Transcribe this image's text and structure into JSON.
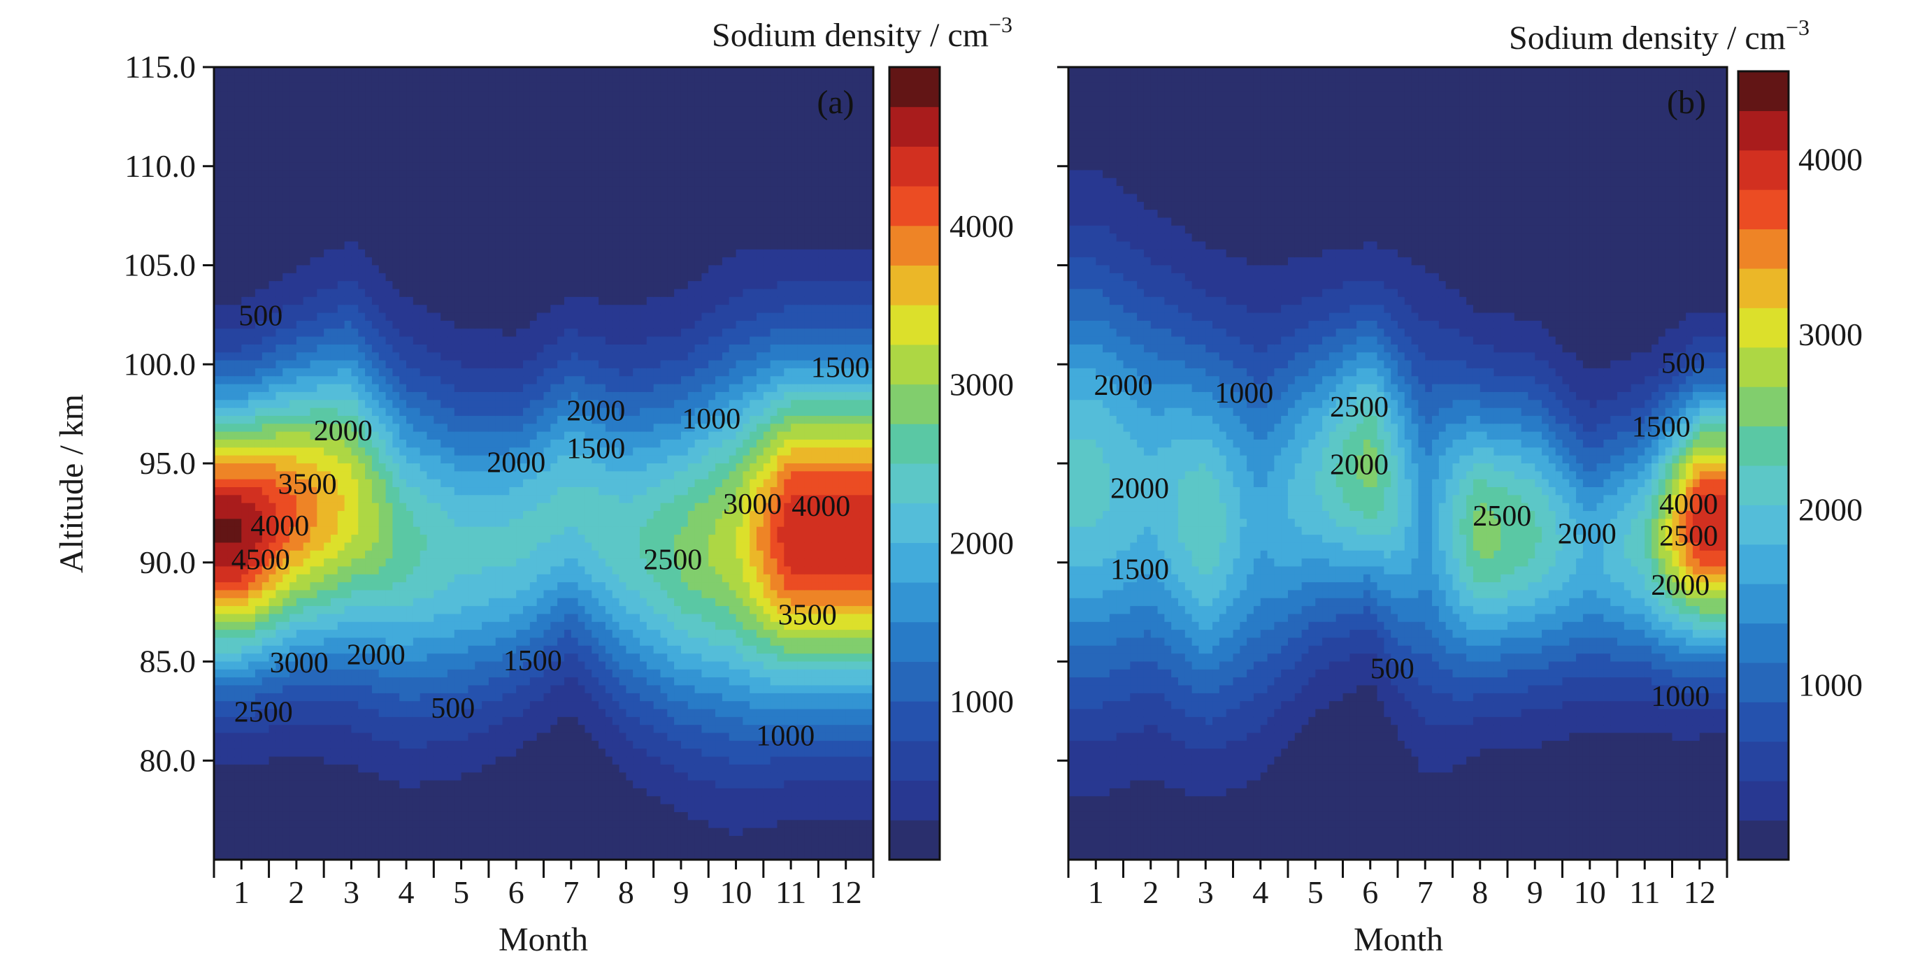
{
  "chart_data": [
    {
      "type": "heatmap",
      "panel_label": "(a)",
      "title": "Sodium density / cm",
      "title_exponent": "−3",
      "xlabel": "Month",
      "ylabel": "Altitude / km",
      "x": [
        1,
        2,
        3,
        4,
        5,
        6,
        7,
        8,
        9,
        10,
        11,
        12
      ],
      "xtick_labels": [
        "1",
        "2",
        "3",
        "4",
        "5",
        "6",
        "7",
        "8",
        "9",
        "10",
        "11",
        "12"
      ],
      "xlim": [
        0.5,
        12.5
      ],
      "ylim": [
        75,
        115
      ],
      "ytick_values": [
        80,
        85,
        90,
        95,
        100,
        105,
        110,
        115
      ],
      "ytick_labels": [
        "80.0",
        "85.0",
        "90.0",
        "95.0",
        "100.0",
        "105.0",
        "110.0",
        "115.0"
      ],
      "colorbar": {
        "range": [
          0,
          5000
        ],
        "tick_values": [
          1000,
          2000,
          3000,
          4000
        ],
        "tick_labels": [
          "1000",
          "2000",
          "3000",
          "4000"
        ]
      },
      "grid": false,
      "peak_altitude_km": [
        91.5,
        92.5,
        93,
        91,
        90.5,
        91,
        93,
        91,
        90.5,
        91,
        91.5,
        91.5
      ],
      "peak_density": [
        4800,
        4000,
        3400,
        2600,
        2300,
        2300,
        2300,
        2400,
        2800,
        3200,
        4500,
        4500
      ],
      "layer_width_km": [
        4.8,
        5.2,
        5.8,
        5.7,
        5.4,
        5.0,
        5.0,
        5.6,
        6.0,
        6.5,
        6.0,
        6.0
      ],
      "contour_labels": [
        {
          "text": "500",
          "x": 1.35,
          "y": 102.3
        },
        {
          "text": "2000",
          "x": 2.85,
          "y": 96.5
        },
        {
          "text": "3500",
          "x": 2.2,
          "y": 93.8
        },
        {
          "text": "4000",
          "x": 1.7,
          "y": 91.7
        },
        {
          "text": "4500",
          "x": 1.35,
          "y": 90.0
        },
        {
          "text": "3000",
          "x": 2.05,
          "y": 84.8
        },
        {
          "text": "2500",
          "x": 1.4,
          "y": 82.3
        },
        {
          "text": "2000",
          "x": 3.45,
          "y": 85.2
        },
        {
          "text": "500",
          "x": 4.85,
          "y": 82.5
        },
        {
          "text": "1500",
          "x": 6.3,
          "y": 84.9
        },
        {
          "text": "2000",
          "x": 6.0,
          "y": 94.9
        },
        {
          "text": "2000",
          "x": 7.45,
          "y": 97.5
        },
        {
          "text": "1500",
          "x": 7.45,
          "y": 95.6
        },
        {
          "text": "1000",
          "x": 9.55,
          "y": 97.1
        },
        {
          "text": "2500",
          "x": 8.85,
          "y": 90.0
        },
        {
          "text": "3000",
          "x": 10.3,
          "y": 92.8
        },
        {
          "text": "4000",
          "x": 11.55,
          "y": 92.7
        },
        {
          "text": "3500",
          "x": 11.3,
          "y": 87.2
        },
        {
          "text": "1500",
          "x": 11.9,
          "y": 99.7
        },
        {
          "text": "1000",
          "x": 10.9,
          "y": 81.1
        }
      ]
    },
    {
      "type": "heatmap",
      "panel_label": "(b)",
      "title": "Sodium density / cm",
      "title_exponent": "−3",
      "xlabel": "Month",
      "ylabel": "",
      "x": [
        1,
        2,
        3,
        4,
        5,
        6,
        7,
        8,
        9,
        10,
        11,
        12
      ],
      "xtick_labels": [
        "1",
        "2",
        "3",
        "4",
        "5",
        "6",
        "7",
        "8",
        "9",
        "10",
        "11",
        "12"
      ],
      "xlim": [
        0.5,
        12.5
      ],
      "ylim": [
        75,
        115
      ],
      "ytick_values": [
        80,
        85,
        90,
        95,
        100,
        105,
        110,
        115
      ],
      "ytick_labels": [],
      "colorbar": {
        "range": [
          0,
          4500
        ],
        "tick_values": [
          1000,
          2000,
          3000,
          4000
        ],
        "tick_labels": [
          "1000",
          "2000",
          "3000",
          "4000"
        ]
      },
      "grid": false,
      "peak_altitude_km": [
        94,
        93.5,
        92,
        92,
        94,
        95,
        92,
        91.5,
        91.5,
        90.5,
        91,
        92
      ],
      "peak_density": [
        2100,
        1850,
        2250,
        1600,
        2000,
        2600,
        1500,
        2600,
        2300,
        1700,
        2200,
        4000
      ],
      "layer_width_km": [
        7.5,
        7.0,
        6.5,
        6.5,
        5.5,
        5.0,
        6.5,
        5.0,
        5.0,
        4.5,
        4.5,
        4.5
      ],
      "contour_labels": [
        {
          "text": "2000",
          "x": 1.5,
          "y": 98.8
        },
        {
          "text": "1000",
          "x": 3.7,
          "y": 98.4
        },
        {
          "text": "2500",
          "x": 5.8,
          "y": 97.7
        },
        {
          "text": "2000",
          "x": 5.8,
          "y": 94.8
        },
        {
          "text": "2000",
          "x": 1.8,
          "y": 93.6
        },
        {
          "text": "1500",
          "x": 1.8,
          "y": 89.5
        },
        {
          "text": "2500",
          "x": 8.4,
          "y": 92.2
        },
        {
          "text": "2000",
          "x": 9.95,
          "y": 91.3
        },
        {
          "text": "4000",
          "x": 11.8,
          "y": 92.8
        },
        {
          "text": "2500",
          "x": 11.8,
          "y": 91.2
        },
        {
          "text": "2000",
          "x": 11.65,
          "y": 88.7
        },
        {
          "text": "1500",
          "x": 11.3,
          "y": 96.7
        },
        {
          "text": "500",
          "x": 11.7,
          "y": 99.9
        },
        {
          "text": "1000",
          "x": 11.65,
          "y": 83.1
        },
        {
          "text": "500",
          "x": 6.4,
          "y": 84.5
        }
      ]
    }
  ]
}
